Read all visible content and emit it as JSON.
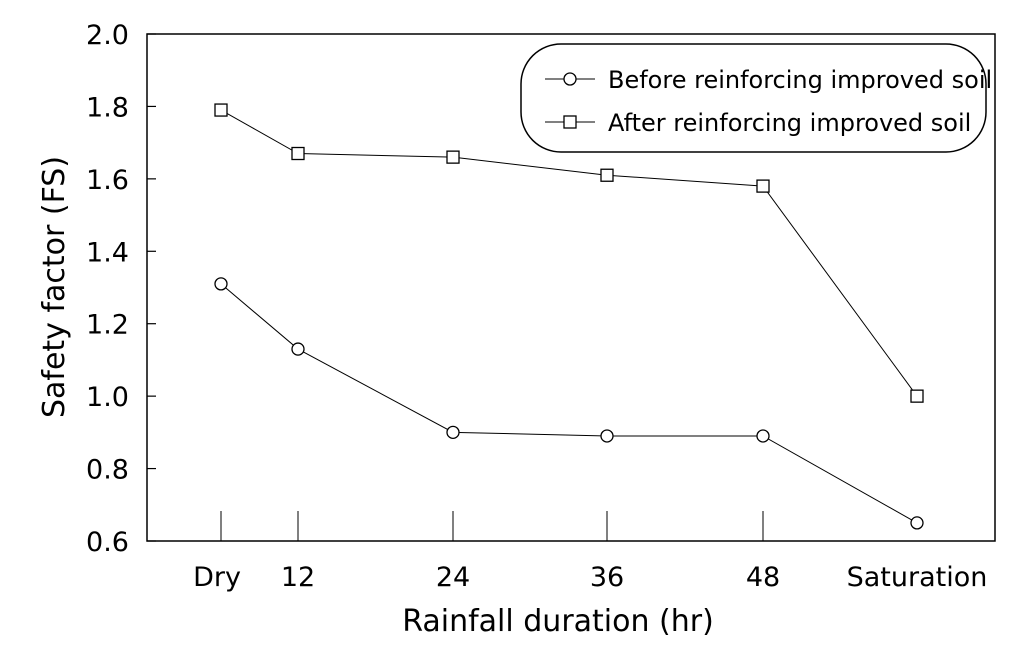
{
  "chart_data": {
    "type": "line",
    "title": "",
    "xlabel": "Rainfall duration (hr)",
    "ylabel": "Safety factor (FS)",
    "categories": [
      "Dry",
      "12",
      "24",
      "36",
      "48",
      "Saturation"
    ],
    "ylim": [
      0.6,
      2.0
    ],
    "yticks": [
      "0.6",
      "0.8",
      "1.0",
      "1.2",
      "1.4",
      "1.6",
      "1.8",
      "2.0"
    ],
    "grid": false,
    "legend_position": "top-right",
    "series": [
      {
        "name": "Before reinforcing improved soil",
        "marker": "circle",
        "values": [
          1.31,
          1.13,
          0.9,
          0.89,
          0.89,
          0.65
        ]
      },
      {
        "name": "After reinforcing improved soil",
        "marker": "square",
        "values": [
          1.79,
          1.67,
          1.66,
          1.61,
          1.58,
          1.0
        ]
      }
    ]
  }
}
